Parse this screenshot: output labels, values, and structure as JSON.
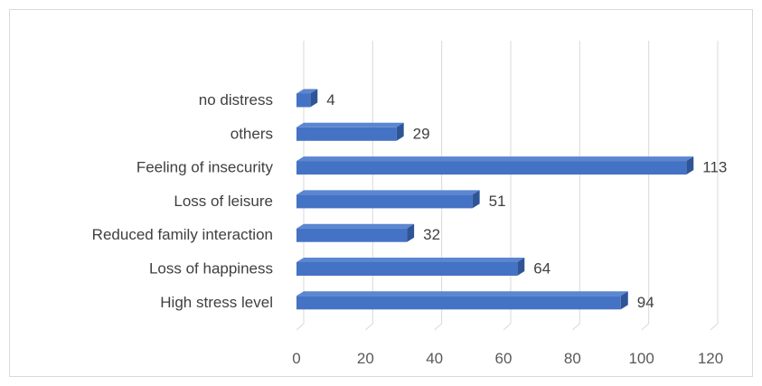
{
  "chart_data": {
    "type": "bar",
    "orientation": "horizontal",
    "style": "3d",
    "title": "",
    "xlabel": "",
    "ylabel": "",
    "categories": [
      "no distress",
      "others",
      "Feeling of insecurity",
      "Loss of leisure",
      "Reduced family interaction",
      "Loss of happiness",
      "High stress level"
    ],
    "values": [
      4,
      29,
      113,
      51,
      32,
      64,
      94
    ],
    "xlim": [
      0,
      120
    ],
    "ticks": [
      0,
      20,
      40,
      60,
      80,
      100,
      120
    ],
    "grid": true,
    "legend": "none",
    "data_labels": true,
    "colors": {
      "bar_front": "#4472c4",
      "bar_top": "#5b86d0",
      "bar_side": "#2f5597",
      "grid": "#d9d9d9"
    }
  }
}
